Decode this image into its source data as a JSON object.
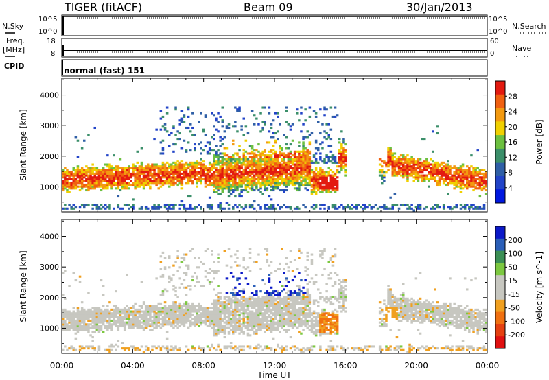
{
  "header": {
    "radar": "TIGER (fitACF)",
    "beam": "Beam 09",
    "date": "30/Jan/2013"
  },
  "strips": {
    "nsky_label": "N.Sky",
    "nsearch_label": "N.Search",
    "freq_label_1": "Freq.",
    "freq_label_2": "[MHz]",
    "nave_label": "Nave",
    "cpid_label": "CPID",
    "cpid_value": "normal (fast) 151",
    "noise_left_ticks": [
      "10^5",
      "10^0"
    ],
    "noise_right_ticks": [
      "10^5",
      "10^0"
    ],
    "freq_ticks": [
      "18",
      "8"
    ],
    "nave_ticks": [
      "60",
      "0"
    ]
  },
  "colors": {
    "power_scale": [
      "#0018e0",
      "#2244c8",
      "#2f5fa6",
      "#3b8f6a",
      "#6cc040",
      "#f0d000",
      "#f39a10",
      "#f06010",
      "#e31a10"
    ],
    "velocity_scale": [
      "#0b19c8",
      "#2b5fb8",
      "#3b8f55",
      "#7cc840",
      "#c7c7c0",
      "#c7c7c0",
      "#f0a020",
      "#f07010",
      "#e54010",
      "#e01010"
    ]
  },
  "chart_data": [
    {
      "type": "heatmap",
      "name": "power",
      "xlabel": "",
      "ylabel": "Slant Range [km]",
      "x_ticks": [
        "00:00",
        "04:00",
        "08:00",
        "12:00",
        "16:00",
        "20:00",
        "00:00"
      ],
      "x_range_hours": [
        0,
        24
      ],
      "y_ticks": [
        1000,
        2000,
        3000,
        4000
      ],
      "ylim": [
        180,
        4550
      ],
      "colorbar_label": "Power [dB]",
      "colorbar_ticks": [
        "28",
        "24",
        "20",
        "16",
        "12",
        "8",
        "4"
      ],
      "colorbar_range": [
        0,
        32
      ],
      "grid": false
    },
    {
      "type": "heatmap",
      "name": "velocity",
      "xlabel": "Time UT",
      "ylabel": "Slant Range [km]",
      "x_ticks": [
        "00:00",
        "04:00",
        "08:00",
        "12:00",
        "16:00",
        "20:00",
        "00:00"
      ],
      "x_range_hours": [
        0,
        24
      ],
      "y_ticks": [
        1000,
        2000,
        3000,
        4000
      ],
      "ylim": [
        180,
        4550
      ],
      "colorbar_label": "Velocity [m s^-1]",
      "colorbar_ticks": [
        "200",
        "100",
        "50",
        "15",
        "-15",
        "-50",
        "-100",
        "-200"
      ],
      "grid": false
    }
  ],
  "footer": {
    "xlabel": "Time UT"
  }
}
